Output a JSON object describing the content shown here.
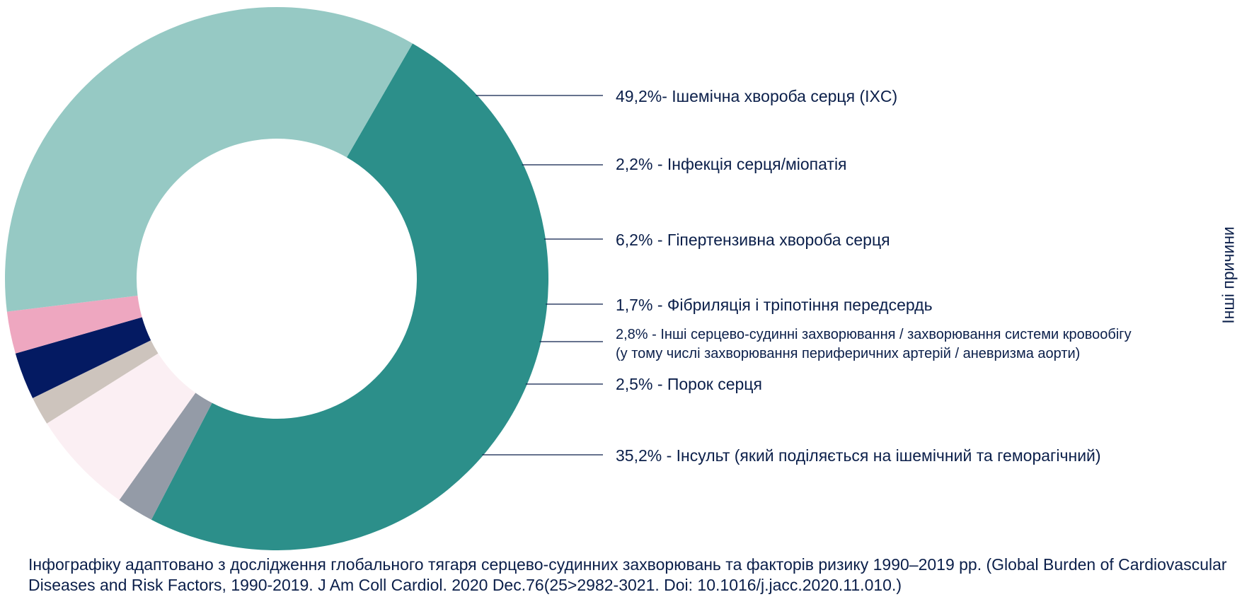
{
  "chart_data": {
    "type": "pie",
    "style": "donut",
    "slices": [
      {
        "key": "ihd",
        "value": 49.2,
        "color": "#2c8f8a",
        "label": "49,2%- Ішемічна хвороба серця (IXC)"
      },
      {
        "key": "infection",
        "value": 2.2,
        "color": "#949ba7",
        "label": "2,2% - Інфекція серця/міопатія"
      },
      {
        "key": "hypertensive",
        "value": 6.2,
        "color": "#fbeff3",
        "label": "6,2% - Гіпертензивна хвороба серця"
      },
      {
        "key": "afib",
        "value": 1.7,
        "color": "#cdc4bd",
        "label": "1,7% - Фібриляція і тріпотіння передсердь"
      },
      {
        "key": "other_cvd",
        "value": 2.8,
        "color": "#041a62",
        "label": "2,8% - Інші серцево-судинні захворювання / захворювання системи кровообігу",
        "label_line2": "(у тому числі захворювання периферичних артерій / аневризма аорти)"
      },
      {
        "key": "valve",
        "value": 2.5,
        "color": "#eea7c0",
        "label": "2,5% - Порок серця"
      },
      {
        "key": "stroke",
        "value": 35.2,
        "color": "#96c9c4",
        "label": "35,2% - Інсульт (який поділяється на ішемічний та геморагічний)"
      }
    ],
    "group": {
      "label": "Інші причини",
      "members": [
        "infection",
        "hypertensive",
        "afib",
        "other_cvd",
        "valve"
      ],
      "color": "#deeeee"
    },
    "line_color": "#0b1f4a"
  },
  "footnote": "Інфографіку адаптовано з дослідження глобального тягаря серцево-судинних захворювань та факторів ризику 1990–2019 рр. (Global Burden of Cardiovascular Diseases and Risk Factors, 1990-2019. J Am Coll Cardiol. 2020 Dec.76(25>2982-3021. Doi: 10.1016/j.jacc.2020.11.010.)"
}
